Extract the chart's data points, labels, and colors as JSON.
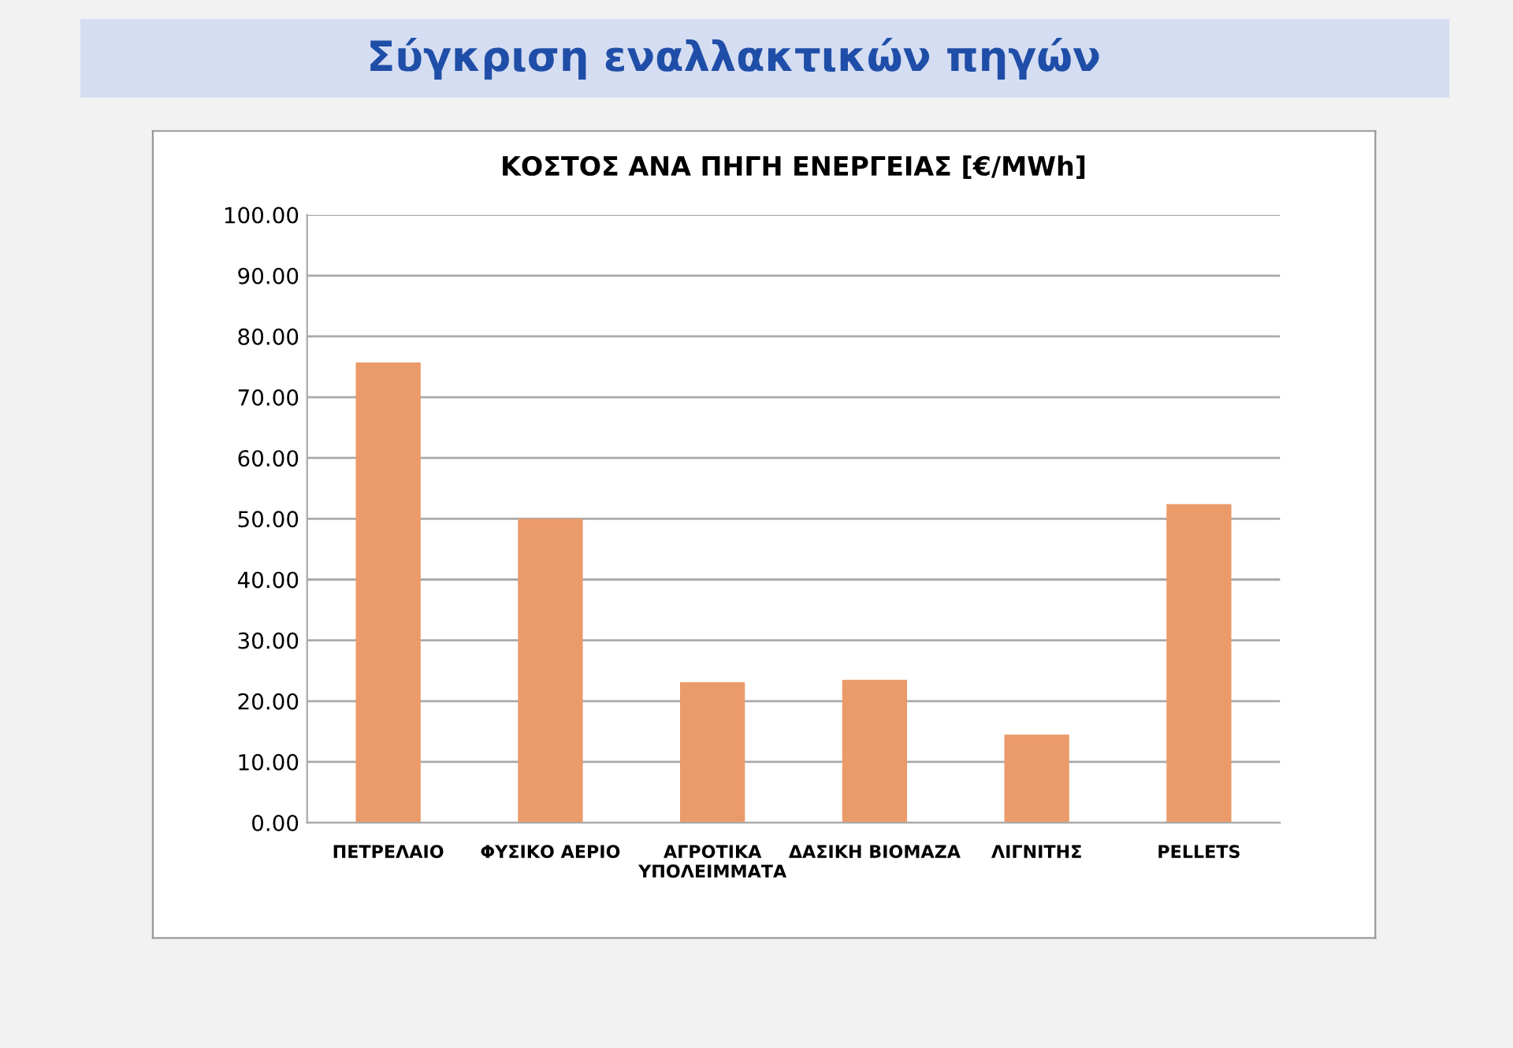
{
  "chart_data": {
    "type": "bar",
    "title": "Σύγκριση εναλλακτικών πηγών",
    "subtitle": "ΚΟΣΤΟΣ ΑΝΑ ΠΗΓΗ ΕΝΕΡΓΕΙΑΣ [€/MWh]",
    "categories": [
      "ΠΕΤΡΕΛΑΙΟ",
      "ΦΥΣΙΚΟ ΑΕΡΙΟ",
      "ΑΓΡΟΤΙΚΑ\nΥΠΟΛΕΙΜΜΑΤΑ",
      "ΔΑΣΙΚΗ ΒΙΟΜΑΖΑ",
      "ΛΙΓΝΙΤΗΣ",
      "PELLETS"
    ],
    "values": [
      75.7,
      50.0,
      23.1,
      23.5,
      14.5,
      52.4
    ],
    "color": "#eb9a6a",
    "ylim": [
      0,
      100
    ],
    "yticks": [
      {
        "value": 0,
        "label": "0.00"
      },
      {
        "value": 10,
        "label": "10.00"
      },
      {
        "value": 20,
        "label": "20.00"
      },
      {
        "value": 30,
        "label": "30.00"
      },
      {
        "value": 40,
        "label": "40.00"
      },
      {
        "value": 50,
        "label": "50.00"
      },
      {
        "value": 60,
        "label": "60.00"
      },
      {
        "value": 70,
        "label": "70.00"
      },
      {
        "value": 80,
        "label": "80.00"
      },
      {
        "value": 90,
        "label": "90.00"
      },
      {
        "value": 100,
        "label": "100.00"
      }
    ],
    "grid": "y",
    "legend": false
  }
}
